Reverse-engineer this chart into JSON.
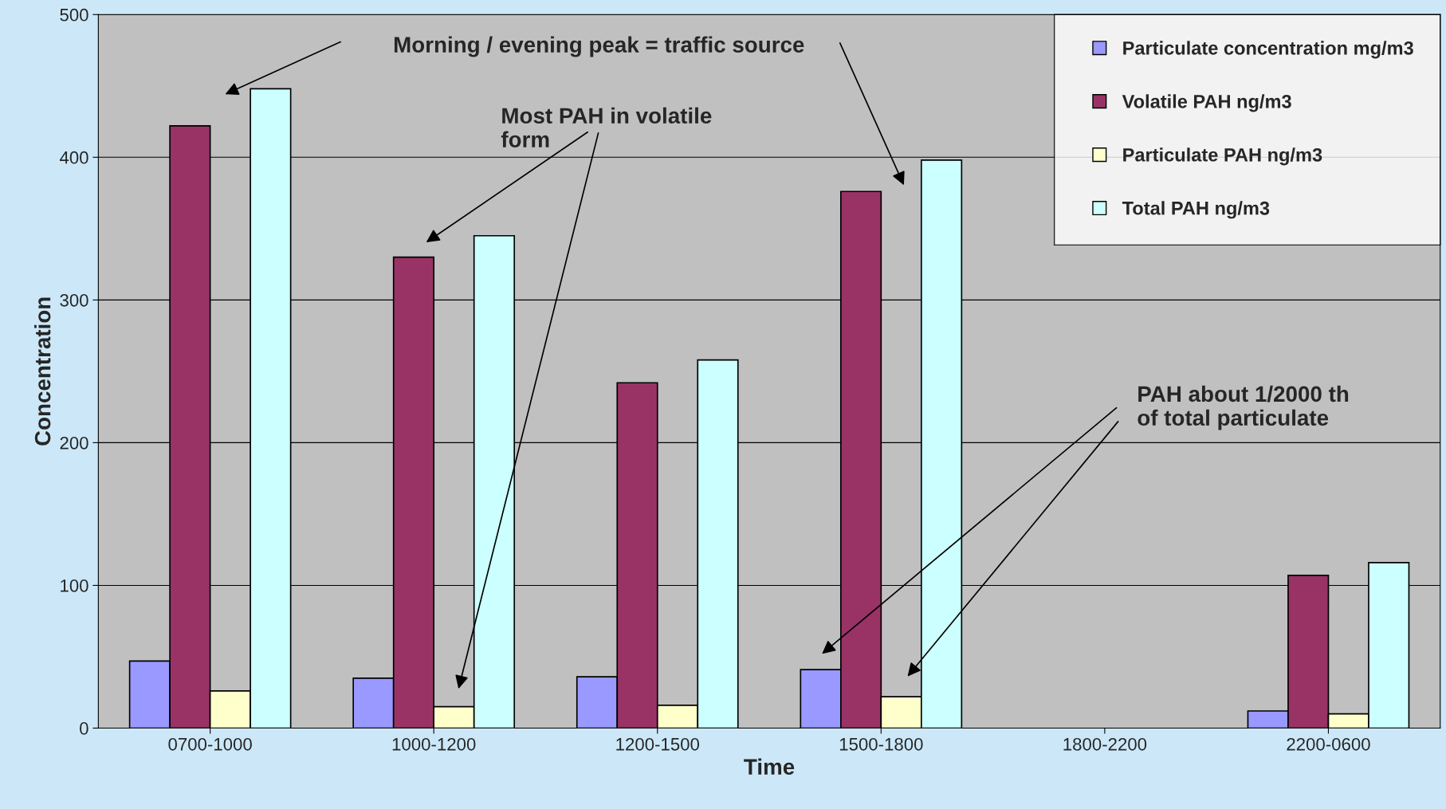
{
  "chart_data": {
    "type": "bar",
    "xlabel": "Time",
    "ylabel": "Concentration",
    "categories": [
      "0700-1000",
      "1000-1200",
      "1200-1500",
      "1500-1800",
      "1800-2200",
      "2200-0600"
    ],
    "series": [
      {
        "name": "Particulate concentration mg/m3",
        "color": "#9999ff",
        "values": [
          47,
          35,
          36,
          41,
          null,
          12
        ]
      },
      {
        "name": "Volatile PAH ng/m3",
        "color": "#993366",
        "values": [
          422,
          330,
          242,
          376,
          null,
          107
        ]
      },
      {
        "name": "Particulate PAH ng/m3",
        "color": "#ffffcc",
        "values": [
          26,
          15,
          16,
          22,
          null,
          10
        ]
      },
      {
        "name": "Total PAH ng/m3",
        "color": "#ccffff",
        "values": [
          448,
          345,
          258,
          398,
          null,
          116
        ]
      }
    ],
    "ylim": [
      0,
      500
    ],
    "yticks": [
      0,
      100,
      200,
      300,
      400,
      500
    ],
    "grid": "y",
    "legend": "top right",
    "annotations": [
      "Morning / evening peak = traffic source",
      "Most PAH in volatile\nform",
      "PAH about 1/2000 th\nof total particulate"
    ]
  }
}
